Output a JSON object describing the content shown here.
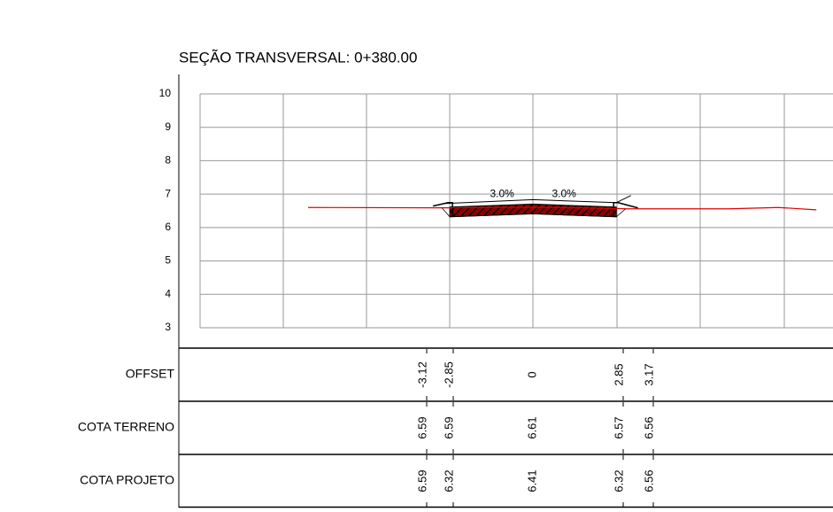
{
  "title": "SEÇÃO TRANSVERSAL: 0+380.00",
  "chart_data": {
    "type": "line",
    "xlim": [
      -11.4,
      10.27
    ],
    "ylim": [
      3,
      10
    ],
    "yticks": [
      3,
      4,
      5,
      6,
      7,
      8,
      9,
      10
    ],
    "slope_labels": [
      "3.0%",
      "3.0%"
    ],
    "series": [
      {
        "color": "#e00000",
        "x": [
          -7.7,
          -3.12,
          -2.85,
          0,
          2.85,
          3.17,
          6.7,
          8.4,
          9.7
        ],
        "values": [
          6.6,
          6.59,
          6.59,
          6.61,
          6.57,
          6.56,
          6.56,
          6.6,
          6.53
        ]
      },
      {
        "color": "#000000",
        "x": [
          -3.12,
          -2.85,
          0,
          2.85,
          3.17
        ],
        "values": [
          6.59,
          6.32,
          6.41,
          6.32,
          6.56
        ]
      }
    ]
  },
  "table": {
    "rows": [
      {
        "label": "OFFSET",
        "values": [
          -3.12,
          -2.85,
          0,
          2.85,
          3.17
        ]
      },
      {
        "label": "COTA TERRENO",
        "values": [
          6.59,
          6.59,
          6.61,
          6.57,
          6.56
        ]
      },
      {
        "label": "COTA PROJETO",
        "values": [
          6.59,
          6.32,
          6.41,
          6.32,
          6.56
        ]
      }
    ]
  }
}
